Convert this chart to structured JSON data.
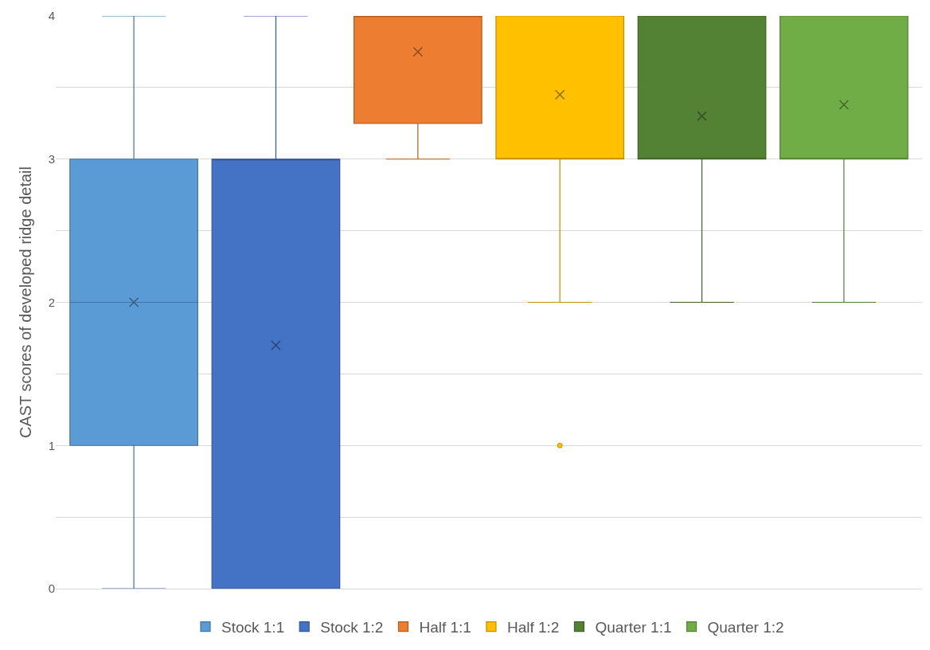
{
  "chart_data": {
    "type": "box",
    "ylabel": "CAST scores of developed ridge detail",
    "categories": [
      null
    ],
    "series": [
      {
        "name": "Stock 1:1",
        "color": "#5b9bd5",
        "boxes": [
          {
            "low": 0,
            "q1": 1,
            "median": 2,
            "q3": 3,
            "high": 4,
            "mean": 2
          }
        ]
      },
      {
        "name": "Stock 1:2",
        "color": "#4472c4",
        "boxes": [
          {
            "low": 0,
            "q1": 0,
            "median": 3,
            "q3": 3,
            "high": 4,
            "mean": 1.7
          }
        ]
      },
      {
        "name": "Half 1:1",
        "color": "#ed7d31",
        "boxes": [
          {
            "low": 3,
            "q1": 3.25,
            "median": 4,
            "q3": 4,
            "high": 4,
            "mean": 3.75
          }
        ]
      },
      {
        "name": "Half 1:2",
        "color": "#ffc000",
        "boxes": [
          {
            "low": 2,
            "q1": 3,
            "median": 3,
            "q3": 4,
            "high": 4,
            "mean": 3.45,
            "outliers": [
              1
            ]
          }
        ]
      },
      {
        "name": "Quarter 1:1",
        "color": "#548235",
        "boxes": [
          {
            "low": 2,
            "q1": 3,
            "median": 3,
            "q3": 4,
            "high": 4,
            "mean": 3.3
          }
        ]
      },
      {
        "name": "Quarter 1:2",
        "color": "#70ad47",
        "boxes": [
          {
            "low": 2,
            "q1": 3,
            "median": 3,
            "q3": 4,
            "high": 4,
            "mean": 3.38
          }
        ]
      }
    ],
    "ylim": [
      0,
      4
    ],
    "yticks": [
      0,
      {
        "value": 0.5,
        "label": null
      },
      1,
      {
        "value": 1.5,
        "label": null
      },
      2,
      {
        "value": 2.5,
        "label": null
      },
      3,
      {
        "value": 3.5,
        "label": null
      },
      4
    ],
    "grid": "y",
    "legend": "bottom",
    "marker": "cross"
  }
}
